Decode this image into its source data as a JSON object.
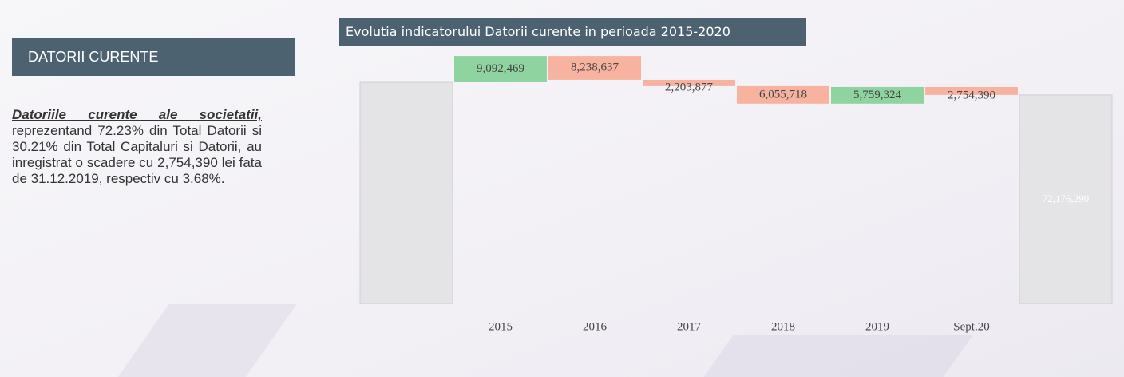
{
  "sidebar": {
    "header": "DATORII CURENTE",
    "emphasis": "Datoriile curente ale societatii,",
    "text": "reprezentand 72.23% din Total Datorii si 30.21% din Total Capitaluri si Datorii, au inregistrat o scadere cu 2,754,390 lei fata de 31.12.2019, respectiv cu 3.68%."
  },
  "chart_data": {
    "type": "waterfall",
    "title": "Evolutia indicatorului Datorii curente in perioada 2015-2020",
    "categories": [
      null,
      "2015",
      "2016",
      "2017",
      "2018",
      "2019",
      "Sept.20",
      null
    ],
    "measure": [
      "absolute",
      "relative",
      "relative",
      "relative",
      "relative",
      "relative",
      "relative",
      "total"
    ],
    "values": [
      76577119,
      9092469,
      -8238637,
      -2203877,
      -6055718,
      5759324,
      -2754390,
      72176290
    ],
    "value_labels": [
      null,
      "9,092,469",
      "8,238,637",
      "2,203,877",
      "6,055,718",
      "5,759,324",
      "2,754,390",
      "72,176,290"
    ],
    "colors": [
      "#e4e4e6",
      "#8fd3a0",
      "#f7b3a0",
      "#f7b3a0",
      "#f7b3a0",
      "#8fd3a0",
      "#f7b3a0",
      "#e4e4e6"
    ]
  }
}
